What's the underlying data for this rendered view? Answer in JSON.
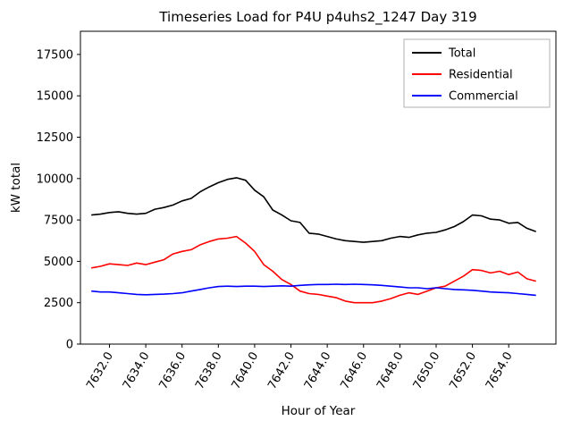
{
  "chart_data": {
    "type": "line",
    "title": "Timeseries Load for P4U p4uhs2_1247  Day 319",
    "xlabel": "Hour of Year",
    "ylabel": "kW total",
    "xlim": [
      7630.4,
      7656.6
    ],
    "ylim": [
      0,
      18900
    ],
    "grid": false,
    "legend_position": "upper right",
    "xticks": [
      7632,
      7634,
      7636,
      7638,
      7640,
      7642,
      7644,
      7646,
      7648,
      7650,
      7652,
      7654
    ],
    "xtick_labels": [
      "7632.0",
      "7634.0",
      "7636.0",
      "7638.0",
      "7640.0",
      "7642.0",
      "7644.0",
      "7646.0",
      "7648.0",
      "7650.0",
      "7652.0",
      "7654.0"
    ],
    "yticks": [
      0,
      2500,
      5000,
      7500,
      10000,
      12500,
      15000,
      17500
    ],
    "ytick_labels": [
      "0",
      "2500",
      "5000",
      "7500",
      "10000",
      "12500",
      "15000",
      "17500"
    ],
    "x": [
      7631.0,
      7631.5,
      7632.0,
      7632.5,
      7633.0,
      7633.5,
      7634.0,
      7634.5,
      7635.0,
      7635.5,
      7636.0,
      7636.5,
      7637.0,
      7637.5,
      7638.0,
      7638.5,
      7639.0,
      7639.5,
      7640.0,
      7640.5,
      7641.0,
      7641.5,
      7642.0,
      7642.5,
      7643.0,
      7643.5,
      7644.0,
      7644.5,
      7645.0,
      7645.5,
      7646.0,
      7646.5,
      7647.0,
      7647.5,
      7648.0,
      7648.5,
      7649.0,
      7649.5,
      7650.0,
      7650.5,
      7651.0,
      7651.5,
      7652.0,
      7652.5,
      7653.0,
      7653.5,
      7654.0,
      7654.5,
      7655.0,
      7655.5
    ],
    "series": [
      {
        "name": "Total",
        "color": "#000000",
        "values": [
          7800,
          7850,
          7950,
          8000,
          7900,
          7850,
          7900,
          8150,
          8250,
          8400,
          8650,
          8800,
          9200,
          9500,
          9750,
          9950,
          10050,
          9900,
          9300,
          8900,
          8100,
          7800,
          7450,
          7350,
          6700,
          6650,
          6500,
          6350,
          6250,
          6200,
          6150,
          6200,
          6250,
          6400,
          6500,
          6450,
          6600,
          6700,
          6750,
          6900,
          7100,
          7400,
          7800,
          7750,
          7550,
          7500,
          7300,
          7350,
          7000,
          6800
        ]
      },
      {
        "name": "Residential",
        "color": "#ff0000",
        "values": [
          4600,
          4700,
          4850,
          4800,
          4750,
          4900,
          4800,
          4950,
          5100,
          5450,
          5600,
          5700,
          6000,
          6200,
          6350,
          6400,
          6500,
          6100,
          5600,
          4800,
          4400,
          3900,
          3600,
          3200,
          3050,
          3000,
          2900,
          2800,
          2600,
          2500,
          2500,
          2500,
          2600,
          2750,
          2950,
          3100,
          3000,
          3200,
          3400,
          3500,
          3800,
          4100,
          4500,
          4450,
          4300,
          4400,
          4200,
          4350,
          3950,
          3800
        ]
      },
      {
        "name": "Commercial",
        "color": "#0000ff",
        "values": [
          3200,
          3150,
          3150,
          3100,
          3050,
          3000,
          2980,
          3000,
          3020,
          3050,
          3100,
          3200,
          3300,
          3400,
          3480,
          3500,
          3480,
          3500,
          3500,
          3480,
          3500,
          3520,
          3500,
          3550,
          3580,
          3600,
          3600,
          3620,
          3600,
          3620,
          3600,
          3580,
          3550,
          3500,
          3450,
          3400,
          3400,
          3350,
          3400,
          3350,
          3300,
          3280,
          3250,
          3200,
          3150,
          3120,
          3100,
          3050,
          3000,
          2950
        ]
      }
    ]
  }
}
